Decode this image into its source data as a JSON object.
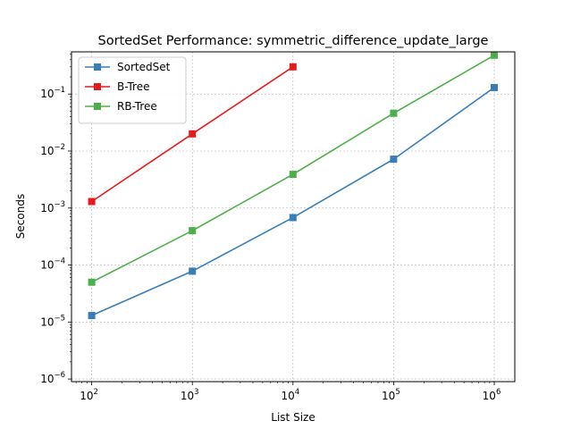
{
  "chart_data": {
    "type": "line",
    "title": "SortedSet Performance: symmetric_difference_update_large",
    "xlabel": "List Size",
    "ylabel": "Seconds",
    "xscale": "log",
    "yscale": "log",
    "xlim": [
      63,
      1600000
    ],
    "ylim": [
      9e-07,
      0.55
    ],
    "grid": true,
    "legend_position": "top-left",
    "x_ticks": [
      {
        "value": 100,
        "base": "10",
        "exp": "2"
      },
      {
        "value": 1000,
        "base": "10",
        "exp": "3"
      },
      {
        "value": 10000,
        "base": "10",
        "exp": "4"
      },
      {
        "value": 100000,
        "base": "10",
        "exp": "5"
      },
      {
        "value": 1000000,
        "base": "10",
        "exp": "6"
      }
    ],
    "y_ticks": [
      {
        "value": 1e-06,
        "base": "10",
        "exp": "−6"
      },
      {
        "value": 1e-05,
        "base": "10",
        "exp": "−5"
      },
      {
        "value": 0.0001,
        "base": "10",
        "exp": "−4"
      },
      {
        "value": 0.001,
        "base": "10",
        "exp": "−3"
      },
      {
        "value": 0.01,
        "base": "10",
        "exp": "−2"
      },
      {
        "value": 0.1,
        "base": "10",
        "exp": "−1"
      }
    ],
    "series": [
      {
        "name": "SortedSet",
        "color": "#377eb8",
        "x": [
          100,
          1000,
          10000,
          100000,
          1000000
        ],
        "values": [
          1.3e-05,
          7.8e-05,
          0.00068,
          0.0072,
          0.13
        ]
      },
      {
        "name": "B-Tree",
        "color": "#e41a1c",
        "x": [
          100,
          1000,
          10000
        ],
        "values": [
          0.0013,
          0.02,
          0.3
        ]
      },
      {
        "name": "RB-Tree",
        "color": "#4daf4a",
        "x": [
          100,
          1000,
          10000,
          100000,
          1000000
        ],
        "values": [
          5e-05,
          0.0004,
          0.0039,
          0.046,
          0.48
        ]
      }
    ]
  }
}
